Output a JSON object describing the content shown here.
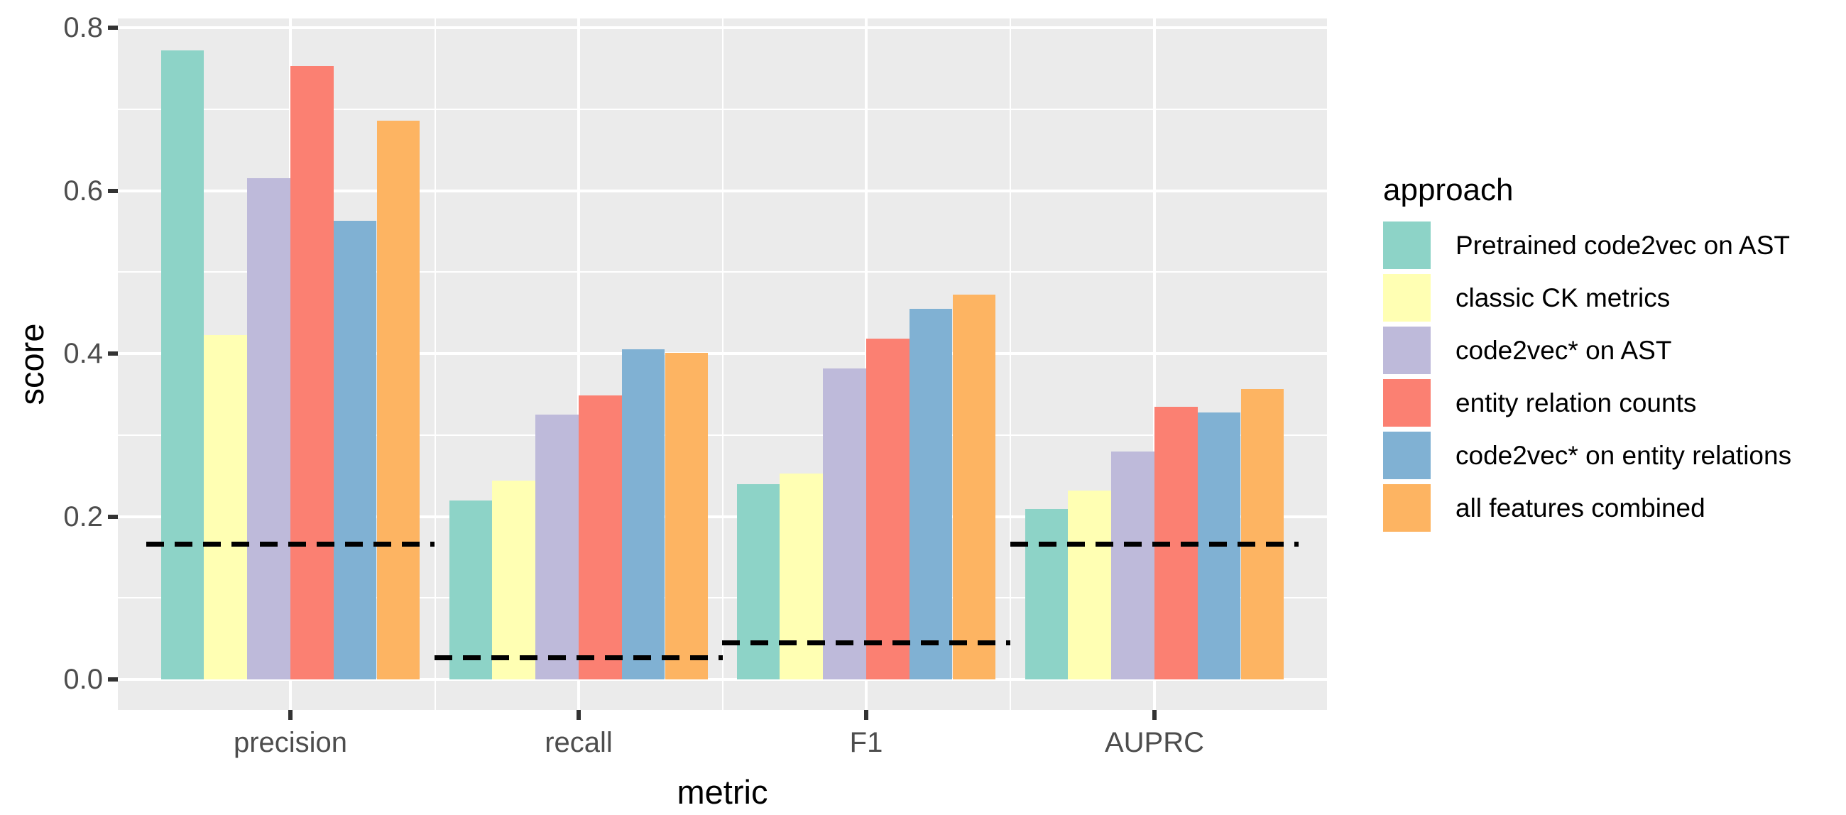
{
  "chart_data": {
    "type": "bar",
    "title": "",
    "xlabel": "metric",
    "ylabel": "score",
    "legend_title": "approach",
    "categories": [
      "precision",
      "recall",
      "F1",
      "AUPRC"
    ],
    "series": [
      {
        "name": "Pretrained code2vec on AST",
        "color": "#8DD3C7",
        "values": [
          0.772,
          0.22,
          0.24,
          0.209
        ]
      },
      {
        "name": "classic CK metrics",
        "color": "#FFFFB3",
        "values": [
          0.423,
          0.244,
          0.253,
          0.232
        ]
      },
      {
        "name": "code2vec* on AST",
        "color": "#BEBADA",
        "values": [
          0.615,
          0.325,
          0.382,
          0.28
        ]
      },
      {
        "name": "entity relation counts",
        "color": "#FB8072",
        "values": [
          0.753,
          0.349,
          0.418,
          0.335
        ]
      },
      {
        "name": "code2vec* on entity relations",
        "color": "#80B1D3",
        "values": [
          0.563,
          0.405,
          0.455,
          0.328
        ]
      },
      {
        "name": "all features combined",
        "color": "#FDB462",
        "values": [
          0.686,
          0.401,
          0.472,
          0.356
        ]
      }
    ],
    "baselines": {
      "style": "black dashed horizontal segment per metric group",
      "values": [
        0.166,
        0.027,
        0.045,
        0.166
      ]
    },
    "y_ticks": [
      {
        "value": 0.0,
        "label": "0.0"
      },
      {
        "value": 0.2,
        "label": "0.2"
      },
      {
        "value": 0.4,
        "label": "0.4"
      },
      {
        "value": 0.6,
        "label": "0.6"
      },
      {
        "value": 0.8,
        "label": "0.8"
      }
    ],
    "ylim": [
      0,
      0.8
    ],
    "grid": {
      "major": "white",
      "minor": "white",
      "panel_background": "#EBEBEB"
    },
    "legend_position": "right"
  },
  "colors": {
    "panel_bg": "#EBEBEB",
    "grid": "#FFFFFF",
    "axis_text": "#4d4d4d",
    "tick_mark": "#333333",
    "baseline": "#000000"
  }
}
